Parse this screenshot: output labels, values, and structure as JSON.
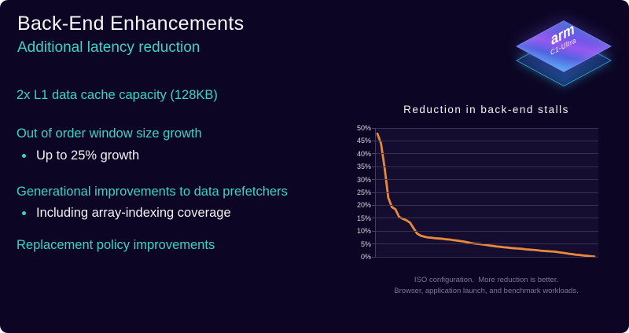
{
  "slide": {
    "title": "Back-End Enhancements",
    "subtitle": "Additional latency reduction"
  },
  "content": {
    "points": [
      {
        "label": "2x L1 data cache capacity (128KB)",
        "bullets": []
      },
      {
        "label": "Out of order window size growth",
        "bullets": [
          "Up to 25% growth"
        ]
      },
      {
        "label": "Generational improvements to data prefetchers",
        "bullets": [
          "Including array-indexing coverage"
        ]
      },
      {
        "label": "Replacement policy improvements",
        "bullets": []
      }
    ]
  },
  "chip": {
    "brand": "arm",
    "model": "C1-Ultra"
  },
  "colors": {
    "background": "#0c0624",
    "accent_cyan": "#3cd2c8",
    "line_orange": "#e8893c",
    "gridline": "#38324e"
  },
  "chart_data": {
    "type": "line",
    "title": "Reduction in back-end stalls",
    "xlabel": "",
    "ylabel": "",
    "x_description": "individual workloads, sorted by reduction (no x tick labels shown)",
    "ylim": [
      0,
      50
    ],
    "ytick_labels": [
      "0%",
      "5%",
      "10%",
      "15%",
      "20%",
      "25%",
      "30%",
      "35%",
      "40%",
      "45%",
      "50%"
    ],
    "grid": true,
    "legend": "none",
    "line_color": "#e8893c",
    "values": [
      47.8,
      44.0,
      34.5,
      23.0,
      19.3,
      18.4,
      15.5,
      14.8,
      14.2,
      13.3,
      11.1,
      9.0,
      8.2,
      7.8,
      7.5,
      7.4,
      7.2,
      7.1,
      7.0,
      6.8,
      6.7,
      6.5,
      6.3,
      6.1,
      5.9,
      5.6,
      5.3,
      5.1,
      5.0,
      4.8,
      4.6,
      4.4,
      4.2,
      4.0,
      3.9,
      3.7,
      3.6,
      3.4,
      3.3,
      3.2,
      3.1,
      2.9,
      2.8,
      2.7,
      2.6,
      2.4,
      2.3,
      2.2,
      2.1,
      2.0,
      1.8,
      1.6,
      1.4,
      1.2,
      1.0,
      0.8,
      0.7,
      0.5,
      0.4,
      0.2,
      0.1
    ],
    "footnote_lines": [
      "ISO configuration.  More reduction is better.",
      "Browser, application launch, and benchmark workloads."
    ]
  }
}
